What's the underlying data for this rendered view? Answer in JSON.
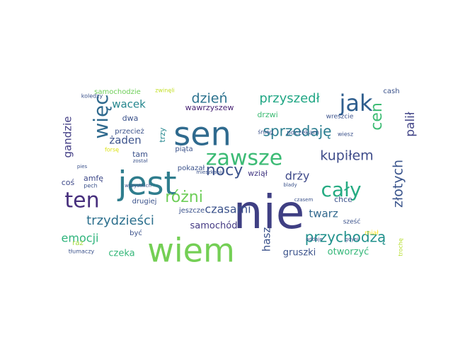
{
  "word_cloud": {
    "words": [
      {
        "text": "nie",
        "color": "#3f3f83",
        "weight": 82
      },
      {
        "text": "sen",
        "color": "#2f6a8e",
        "weight": 50
      },
      {
        "text": "wiem",
        "color": "#74cf55",
        "weight": 50
      },
      {
        "text": "jest",
        "color": "#2f7d8d",
        "weight": 50
      },
      {
        "text": "zawsze",
        "color": "#3cbb75",
        "weight": 34
      },
      {
        "text": "jak",
        "color": "#2f5e8e",
        "weight": 32
      },
      {
        "text": "cały",
        "color": "#25ab82",
        "weight": 30
      },
      {
        "text": "ten",
        "color": "#472f7d",
        "weight": 30
      },
      {
        "text": "więc",
        "color": "#306a8e",
        "weight": 28
      },
      {
        "text": "nocy",
        "color": "#3b528b",
        "weight": 24
      },
      {
        "text": "różni",
        "color": "#6ece58",
        "weight": 24
      },
      {
        "text": "sprzedaję",
        "color": "#287c8e",
        "weight": 22
      },
      {
        "text": "przychodzą",
        "color": "#21918c",
        "weight": 22
      },
      {
        "text": "cen",
        "color": "#3dbc74",
        "weight": 22
      },
      {
        "text": "kupiłem",
        "color": "#3e4c8a",
        "weight": 20
      },
      {
        "text": "dzień",
        "color": "#2c728e",
        "weight": 20
      },
      {
        "text": "przyszedł",
        "color": "#22a785",
        "weight": 20
      },
      {
        "text": "trzydzieści",
        "color": "#2d708e",
        "weight": 20
      },
      {
        "text": "emocji",
        "color": "#2fb47c",
        "weight": 18
      },
      {
        "text": "złotych",
        "color": "#3a548c",
        "weight": 20
      },
      {
        "text": "palił",
        "color": "#414487",
        "weight": 18
      },
      {
        "text": "gandzie",
        "color": "#433e85",
        "weight": 16
      },
      {
        "text": "czasami",
        "color": "#3b528b",
        "weight": 18
      },
      {
        "text": "drży",
        "color": "#3e4989",
        "weight": 18
      },
      {
        "text": "twarz",
        "color": "#31688e",
        "weight": 16
      },
      {
        "text": "hasz",
        "color": "#3b528b",
        "weight": 16
      },
      {
        "text": "wacek",
        "color": "#24868e",
        "weight": 16
      },
      {
        "text": "żaden",
        "color": "#3b528b",
        "weight": 16
      },
      {
        "text": "samochód",
        "color": "#443983",
        "weight": 14
      },
      {
        "text": "gruszki",
        "color": "#3b528b",
        "weight": 14
      },
      {
        "text": "otworzyć",
        "color": "#35b779",
        "weight": 14
      },
      {
        "text": "czeka",
        "color": "#35b779",
        "weight": 13
      },
      {
        "text": "wawrzyszew",
        "color": "#482374",
        "weight": 12
      },
      {
        "text": "drzwi",
        "color": "#3dbc74",
        "weight": 12
      },
      {
        "text": "dwa",
        "color": "#3b528b",
        "weight": 12
      },
      {
        "text": "trzy",
        "color": "#24868e",
        "weight": 12
      },
      {
        "text": "tam",
        "color": "#3b528b",
        "weight": 12
      },
      {
        "text": "amfę",
        "color": "#3e4989",
        "weight": 12
      },
      {
        "text": "coś",
        "color": "#3e4989",
        "weight": 12
      },
      {
        "text": "chce",
        "color": "#3b528b",
        "weight": 12
      },
      {
        "text": "wziął",
        "color": "#443983",
        "weight": 12
      },
      {
        "text": "samochodzie",
        "color": "#6ece58",
        "weight": 11
      },
      {
        "text": "przecież",
        "color": "#3b528b",
        "weight": 11
      },
      {
        "text": "wreszcie",
        "color": "#3b528b",
        "weight": 10
      },
      {
        "text": "cash",
        "color": "#3b528b",
        "weight": 11
      },
      {
        "text": "drugiej",
        "color": "#3b528b",
        "weight": 11
      },
      {
        "text": "jeszcze",
        "color": "#3b528b",
        "weight": 11
      },
      {
        "text": "pokazał",
        "color": "#3b528b",
        "weight": 11
      },
      {
        "text": "piąta",
        "color": "#3b528b",
        "weight": 11
      },
      {
        "text": "być",
        "color": "#3b528b",
        "weight": 11
      },
      {
        "text": "raz",
        "color": "#a0da39",
        "weight": 11
      },
      {
        "text": "miał",
        "color": "#fde725",
        "weight": 10
      },
      {
        "text": "sześć",
        "color": "#3b528b",
        "weight": 10
      },
      {
        "text": "poczekam",
        "color": "#3b528b",
        "weight": 10
      },
      {
        "text": "śnieg",
        "color": "#3b528b",
        "weight": 9
      },
      {
        "text": "wiesz",
        "color": "#3b528b",
        "weight": 9
      },
      {
        "text": "koledzy",
        "color": "#3b528b",
        "weight": 9
      },
      {
        "text": "zwinęli",
        "color": "#c2df23",
        "weight": 9
      },
      {
        "text": "forsę",
        "color": "#dde318",
        "weight": 9
      },
      {
        "text": "został",
        "color": "#3b528b",
        "weight": 8
      },
      {
        "text": "mieszkaniu",
        "color": "#3b528b",
        "weight": 8
      },
      {
        "text": "pech",
        "color": "#3b528b",
        "weight": 8
      },
      {
        "text": "wszystkich",
        "color": "#3b528b",
        "weight": 8
      },
      {
        "text": "tłumaczy",
        "color": "#3b528b",
        "weight": 8
      },
      {
        "text": "czasem",
        "color": "#3b528b",
        "weight": 8
      },
      {
        "text": "blady",
        "color": "#3b528b",
        "weight": 8
      },
      {
        "text": "gdyni",
        "color": "#3b528b",
        "weight": 8
      },
      {
        "text": "oddaje",
        "color": "#3b528b",
        "weight": 8
      },
      {
        "text": "pies",
        "color": "#3b528b",
        "weight": 7
      },
      {
        "text": "trochę",
        "color": "#b5de2b",
        "weight": 8
      }
    ]
  }
}
